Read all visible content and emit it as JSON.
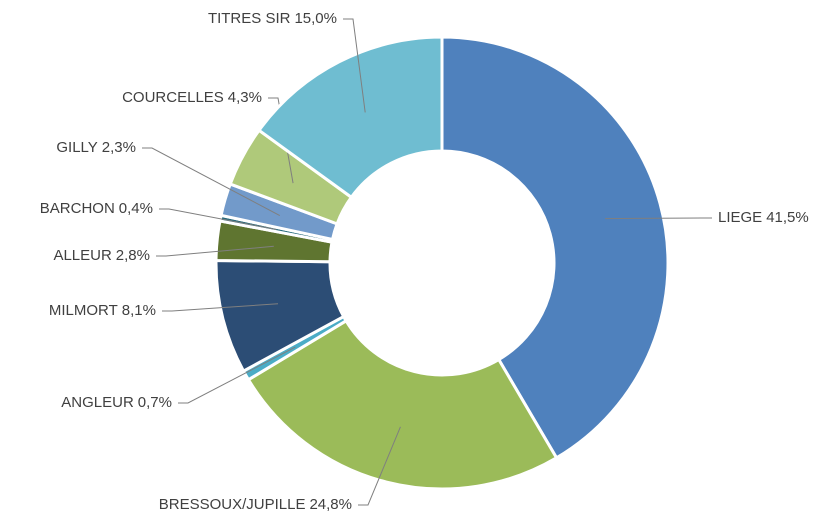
{
  "chart_data": {
    "type": "donut",
    "categories": [
      "LIEGE",
      "BRESSOUX/JUPILLE",
      "ANGLEUR",
      "MILMORT",
      "ALLEUR",
      "BARCHON",
      "GILLY",
      "COURCELLES",
      "TITRES SIR"
    ],
    "values": [
      41.5,
      24.8,
      0.7,
      8.1,
      2.8,
      0.4,
      2.3,
      4.3,
      15.0
    ],
    "value_labels": [
      "41,5%",
      "24,8%",
      "0,7%",
      "8,1%",
      "2,8%",
      "0,4%",
      "2,3%",
      "4,3%",
      "15,0%"
    ],
    "colors": [
      "#4f81bd",
      "#9bbb59",
      "#4bacc6",
      "#2c4d75",
      "#5f7530",
      "#276a7c",
      "#729aca",
      "#afc97a",
      "#6fbdd1"
    ]
  }
}
